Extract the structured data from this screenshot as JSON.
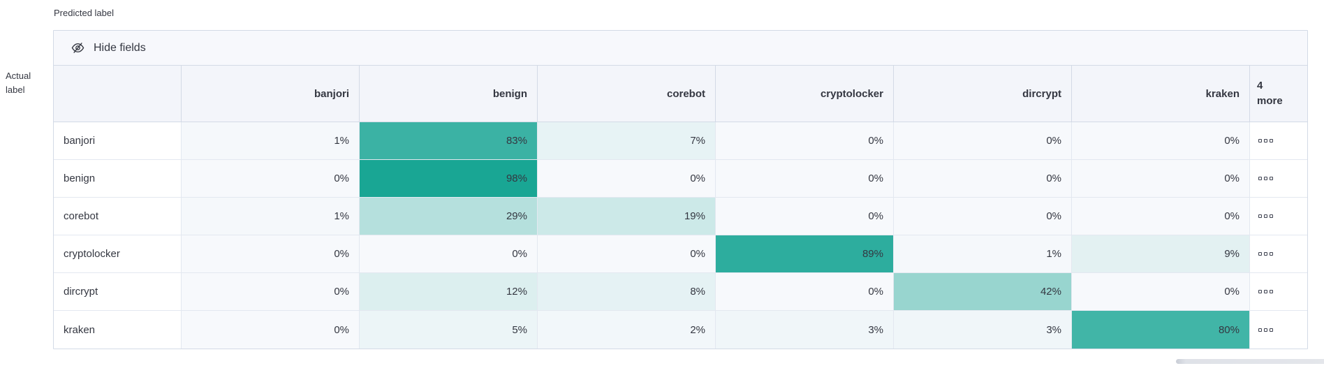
{
  "axes": {
    "predicted_label": "Predicted label",
    "actual_label": "Actual\nlabel"
  },
  "toolbar": {
    "hide_fields_label": "Hide fields",
    "icon": "eye-closed-icon"
  },
  "chart_data": {
    "type": "heatmap",
    "description": "Confusion matrix of actual vs predicted class labels, values as percentages",
    "columns": [
      "banjori",
      "benign",
      "corebot",
      "cryptolocker",
      "dircrypt",
      "kraken"
    ],
    "extra_columns_label": "4\nmore",
    "extra_columns_icon": "boxes-icon",
    "rows": [
      {
        "label": "banjori",
        "values": [
          1,
          83,
          7,
          0,
          0,
          0
        ]
      },
      {
        "label": "benign",
        "values": [
          0,
          98,
          0,
          0,
          0,
          0
        ]
      },
      {
        "label": "corebot",
        "values": [
          1,
          29,
          19,
          0,
          0,
          0
        ]
      },
      {
        "label": "cryptolocker",
        "values": [
          0,
          0,
          0,
          89,
          1,
          9
        ]
      },
      {
        "label": "dircrypt",
        "values": [
          0,
          12,
          8,
          0,
          42,
          0
        ]
      },
      {
        "label": "kraken",
        "values": [
          0,
          5,
          2,
          3,
          3,
          80
        ]
      }
    ],
    "value_suffix": "%",
    "heatmap": {
      "min_color": "#F7F9FC",
      "max_color": "#14A492",
      "domain": [
        0,
        100
      ]
    },
    "legend_position": "none",
    "grid": true
  },
  "ui_colors": {
    "accent_teal": "#14A492",
    "header_bg": "#F3F5FA",
    "toolbar_bg": "#F7F8FC",
    "border": "#D3DAE6",
    "text": "#343741"
  }
}
